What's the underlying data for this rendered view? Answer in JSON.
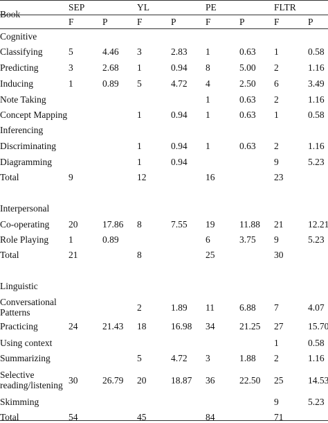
{
  "header": {
    "book": "Book",
    "groups": [
      "SEP",
      "YL",
      "PE",
      "FLTR"
    ],
    "sub": [
      "F",
      "P",
      "F",
      "P",
      "F",
      "P",
      "F",
      "P"
    ]
  },
  "rows": [
    {
      "label": "Cognitive",
      "cells": [
        "",
        "",
        "",
        "",
        "",
        "",
        "",
        ""
      ]
    },
    {
      "label": "Classifying",
      "cells": [
        "5",
        "4.46",
        "3",
        "2.83",
        "1",
        "0.63",
        "1",
        "0.58"
      ]
    },
    {
      "label": "Predicting",
      "cells": [
        "3",
        "2.68",
        "1",
        "0.94",
        "8",
        "5.00",
        "2",
        "1.16"
      ]
    },
    {
      "label": "Inducing",
      "cells": [
        "1",
        "0.89",
        "5",
        "4.72",
        "4",
        "2.50",
        "6",
        "3.49"
      ]
    },
    {
      "label": "Note Taking",
      "cells": [
        "",
        "",
        "",
        "",
        "1",
        "0.63",
        "2",
        "1.16"
      ]
    },
    {
      "label": "Concept Mapping",
      "cells": [
        "",
        "",
        "1",
        "0.94",
        "1",
        "0.63",
        "1",
        "0.58"
      ]
    },
    {
      "label": "Inferencing",
      "cells": [
        "",
        "",
        "",
        "",
        "",
        "",
        "",
        ""
      ]
    },
    {
      "label": "Discriminating",
      "cells": [
        "",
        "",
        "1",
        "0.94",
        "1",
        "0.63",
        "2",
        "1.16"
      ]
    },
    {
      "label": "Diagramming",
      "cells": [
        "",
        "",
        "1",
        "0.94",
        "",
        "",
        "9",
        "5.23"
      ]
    },
    {
      "label": "Total",
      "cells": [
        "9",
        "",
        "12",
        "",
        "16",
        "",
        "23",
        ""
      ]
    },
    {
      "label": "Interpersonal",
      "cells": [
        "",
        "",
        "",
        "",
        "",
        "",
        "",
        ""
      ]
    },
    {
      "label": "Co-operating",
      "cells": [
        "20",
        "17.86",
        "8",
        "7.55",
        "19",
        "11.88",
        "21",
        "12.21"
      ]
    },
    {
      "label": "Role Playing",
      "cells": [
        "1",
        "0.89",
        "",
        "",
        "6",
        "3.75",
        "9",
        "5.23"
      ]
    },
    {
      "label": "Total",
      "cells": [
        "21",
        "",
        "8",
        "",
        "25",
        "",
        "30",
        ""
      ]
    },
    {
      "label": "Linguistic",
      "cells": [
        "",
        "",
        "",
        "",
        "",
        "",
        "",
        ""
      ]
    },
    {
      "label": "Conversational Patterns",
      "cells": [
        "",
        "",
        "2",
        "1.89",
        "11",
        "6.88",
        "7",
        "4.07"
      ]
    },
    {
      "label": "Practicing",
      "cells": [
        "24",
        "21.43",
        "18",
        "16.98",
        "34",
        "21.25",
        "27",
        "15.70"
      ]
    },
    {
      "label": "Using context",
      "cells": [
        "",
        "",
        "",
        "",
        "",
        "",
        "1",
        "0.58"
      ]
    },
    {
      "label": "Summarizing",
      "cells": [
        "",
        "",
        "5",
        "4.72",
        "3",
        "1.88",
        "2",
        "1.16"
      ]
    },
    {
      "label": "Selective reading/listening",
      "cells": [
        "30",
        "26.79",
        "20",
        "18.87",
        "36",
        "22.50",
        "25",
        "14.53"
      ]
    },
    {
      "label": "Skimming",
      "cells": [
        "",
        "",
        "",
        "",
        "",
        "",
        "9",
        "5.23"
      ]
    },
    {
      "label": "Total",
      "cells": [
        "54",
        "",
        "45",
        "",
        "84",
        "",
        "71",
        ""
      ]
    }
  ]
}
